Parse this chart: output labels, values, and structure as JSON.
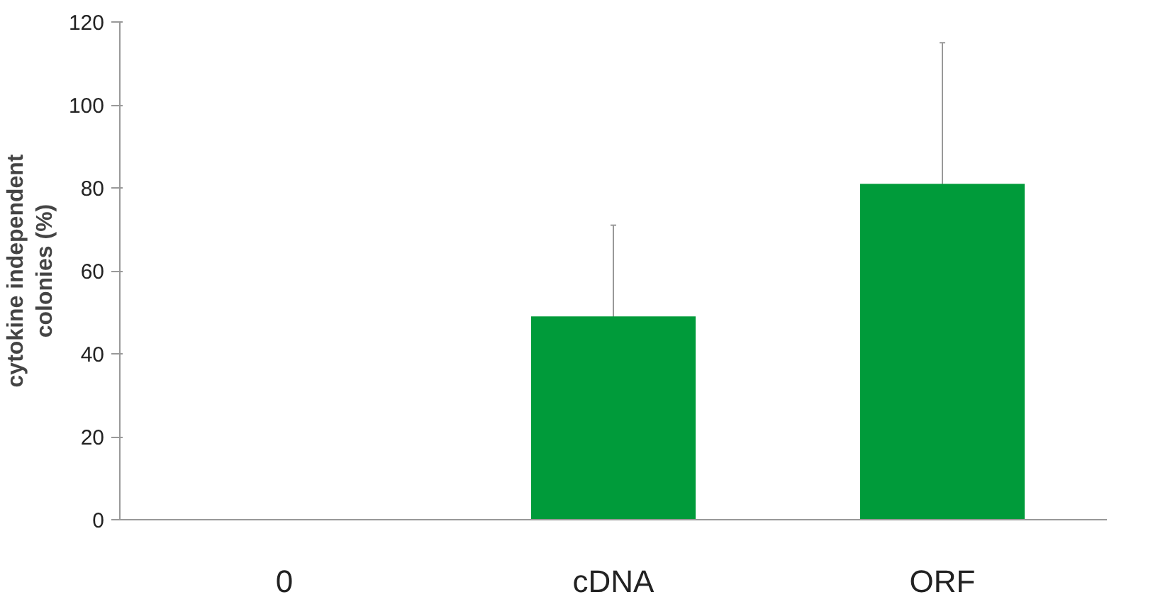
{
  "chart_data": {
    "type": "bar",
    "ylabel": "cytokine independent\ncolonies (%)",
    "categories": [
      "0",
      "cDNA",
      "ORF"
    ],
    "values": [
      0,
      49,
      81
    ],
    "errors": [
      null,
      22,
      34
    ],
    "color": "#009b3a",
    "ylim": [
      0,
      120
    ],
    "yticks": [
      0,
      20,
      40,
      60,
      80,
      100,
      120
    ],
    "grid": false
  }
}
